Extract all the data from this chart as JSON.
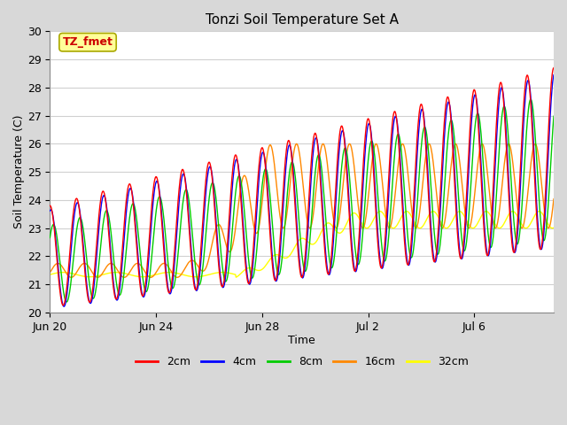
{
  "title": "Tonzi Soil Temperature Set A",
  "xlabel": "Time",
  "ylabel": "Soil Temperature (C)",
  "ylim": [
    20.0,
    30.0
  ],
  "yticks": [
    20.0,
    21.0,
    22.0,
    23.0,
    24.0,
    25.0,
    26.0,
    27.0,
    28.0,
    29.0,
    30.0
  ],
  "legend_labels": [
    "2cm",
    "4cm",
    "8cm",
    "16cm",
    "32cm"
  ],
  "legend_colors": [
    "#ff0000",
    "#0000ff",
    "#00cc00",
    "#ff8800",
    "#ffff00"
  ],
  "fig_bg_color": "#d8d8d8",
  "plot_bg_color": "#ffffff",
  "annotation_text": "TZ_fmet",
  "annotation_bg": "#ffff99",
  "annotation_fg": "#cc0000",
  "annotation_edge": "#aaa800",
  "x_tick_labels": [
    "Jun 20",
    "Jun 24",
    "Jun 28",
    "Jul 2",
    "Jul 6"
  ],
  "x_tick_positions": [
    0,
    4,
    8,
    12,
    16
  ],
  "xlim": [
    0,
    19
  ],
  "total_days": 19
}
